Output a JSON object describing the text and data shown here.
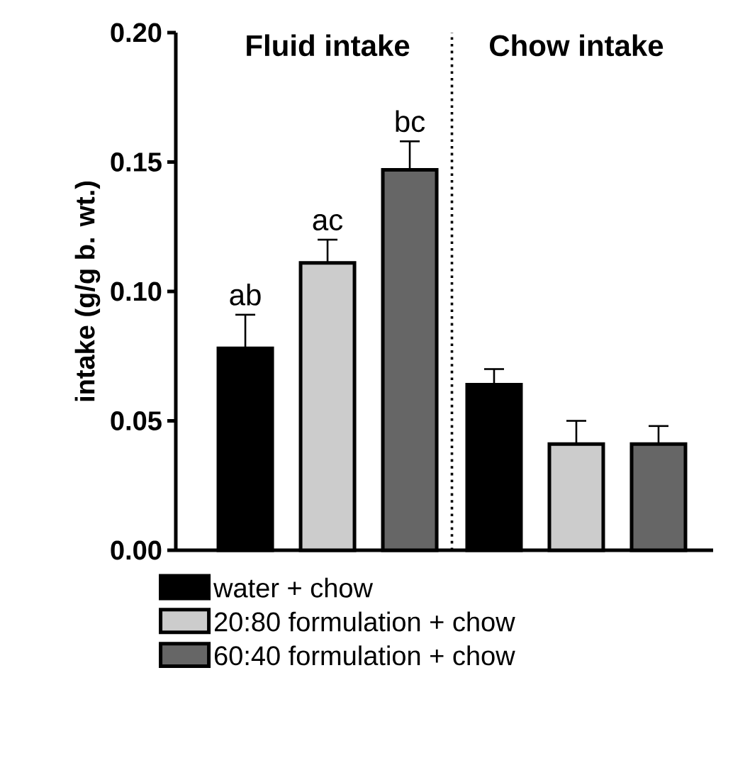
{
  "chart_data": {
    "type": "bar",
    "categories": [
      "Fluid intake",
      "Chow intake"
    ],
    "ylabel": "intake (g/g b. wt.)",
    "ylim": [
      0,
      0.2
    ],
    "yticks": [
      {
        "value": 0,
        "label": "0.00"
      },
      {
        "value": 0.05,
        "label": "0.05"
      },
      {
        "value": 0.1,
        "label": "0.10"
      },
      {
        "value": 0.15,
        "label": "0.15"
      },
      {
        "value": 0.2,
        "label": "0.20"
      }
    ],
    "series": [
      {
        "name": "water + chow",
        "color": "#000000",
        "values": [
          0.078,
          0.064
        ],
        "errors": [
          [
            0.078,
            0.091
          ],
          [
            0.064,
            0.07
          ]
        ],
        "value_labels": [
          "ab",
          null
        ]
      },
      {
        "name": "20:80 formulation + chow",
        "color": "#cccccc",
        "values": [
          0.111,
          0.041
        ],
        "errors": [
          [
            0.111,
            0.12
          ],
          [
            0.041,
            0.05
          ]
        ],
        "value_labels": [
          "ac",
          null
        ]
      },
      {
        "name": "60:40 formulation + chow",
        "color": "#666666",
        "values": [
          0.147,
          0.041
        ],
        "errors": [
          [
            0.147,
            0.158
          ],
          [
            0.041,
            0.048
          ]
        ],
        "value_labels": [
          "bc",
          null
        ]
      }
    ],
    "legend": "bottom",
    "grid": false
  }
}
